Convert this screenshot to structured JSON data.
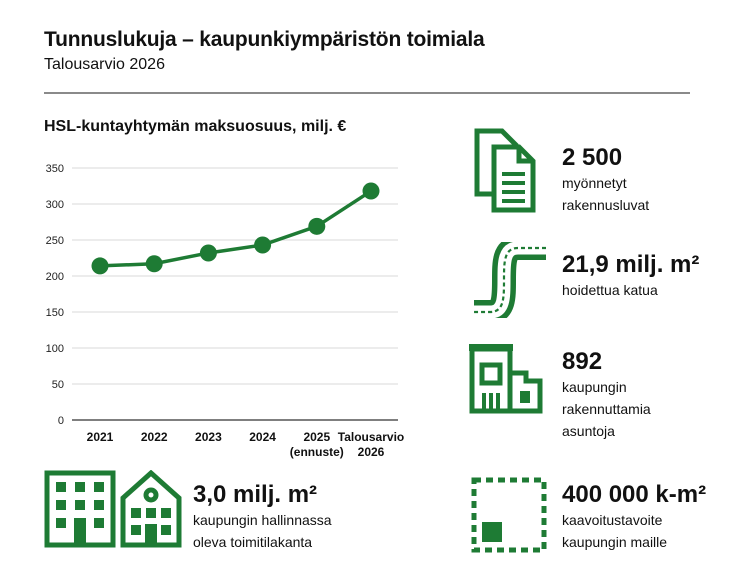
{
  "header": {
    "title": "Tunnuslukuja – kaupunkiympäristön toimiala",
    "subtitle": "Talousarvio 2026"
  },
  "chart_data": {
    "type": "line",
    "title": "HSL-kuntayhtymän maksuosuus, milj. €",
    "categories": [
      [
        "2021"
      ],
      [
        "2022"
      ],
      [
        "2023"
      ],
      [
        "2024"
      ],
      [
        "2025",
        "(ennuste)"
      ],
      [
        "Talousarvio",
        "2026"
      ]
    ],
    "values": [
      214,
      217,
      232,
      243,
      269,
      318
    ],
    "yticks": [
      0,
      50,
      100,
      150,
      200,
      250,
      300,
      350
    ],
    "ylim": [
      0,
      350
    ],
    "grid": true,
    "color": "#1e7b34"
  },
  "stats": {
    "permits": {
      "value": "2 500",
      "label_line1": "myönnetyt",
      "label_line2": "rakennusluvat",
      "icon": "documents-icon"
    },
    "streets": {
      "value": "21,9 milj. m²",
      "label_line1": "hoidettua katua",
      "icon": "road-icon"
    },
    "housing": {
      "value": "892",
      "label_line1": "kaupungin",
      "label_line2": "rakennuttamia",
      "label_line3": "asuntoja",
      "icon": "apartment-buildings-icon"
    },
    "facilities": {
      "value": "3,0 milj. m²",
      "label_line1": "kaupungin hallinnassa",
      "label_line2": "oleva toimitilakanta",
      "icon": "office-buildings-icon"
    },
    "zoning": {
      "value": "400 000 k-m²",
      "label_line1": "kaavoitustavoite",
      "label_line2": "kaupungin maille",
      "icon": "zoning-plot-icon"
    }
  },
  "colors": {
    "accent": "#1e7b34",
    "rule": "#8a8a8a",
    "grid": "#d9d9d9"
  }
}
